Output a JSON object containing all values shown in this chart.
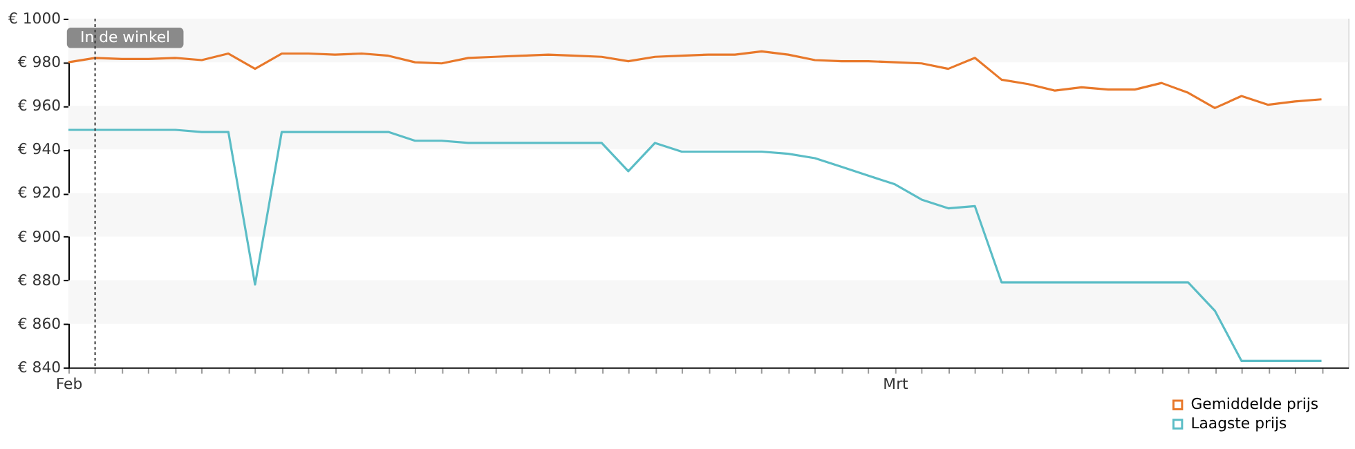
{
  "chart_data": {
    "type": "line",
    "categories": [
      "Feb",
      null,
      null,
      null,
      null,
      null,
      null,
      null,
      null,
      null,
      null,
      null,
      null,
      null,
      null,
      null,
      null,
      null,
      null,
      null,
      null,
      null,
      null,
      null,
      null,
      null,
      null,
      null,
      null,
      null,
      null,
      "Mrt",
      null,
      null,
      null,
      null,
      null,
      null,
      null,
      null,
      null,
      null,
      null,
      null,
      null,
      null,
      null,
      null
    ],
    "series": [
      {
        "name": "Gemiddelde prijs",
        "color": "#e8782a",
        "values": [
          980,
          982,
          981.5,
          981.5,
          982,
          981,
          984,
          977,
          984,
          984,
          983.5,
          984,
          983,
          980,
          979.5,
          982,
          982.5,
          983,
          983.5,
          983,
          982.5,
          980.5,
          982.5,
          983,
          983.5,
          983.5,
          985,
          983.5,
          981,
          980.5,
          980.5,
          980,
          979.5,
          977,
          982,
          972,
          970,
          967,
          968.5,
          967.5,
          967.5,
          970.5,
          966,
          959,
          964.5,
          960.5,
          962,
          963
        ]
      },
      {
        "name": "Laagste prijs",
        "color": "#5bbdc6",
        "values": [
          949,
          949,
          949,
          949,
          949,
          948,
          948,
          878,
          948,
          948,
          948,
          948,
          948,
          944,
          944,
          943,
          943,
          943,
          943,
          943,
          943,
          930,
          943,
          939,
          939,
          939,
          939,
          938,
          936,
          932,
          928,
          924,
          917,
          913,
          914,
          879,
          879,
          879,
          879,
          879,
          879,
          879,
          879,
          866,
          843,
          843,
          843,
          843
        ]
      }
    ],
    "ylim": [
      840,
      1000
    ],
    "yticks": [
      {
        "value": 840,
        "label": "€ 840"
      },
      {
        "value": 860,
        "label": "€ 860"
      },
      {
        "value": 880,
        "label": "€ 880"
      },
      {
        "value": 900,
        "label": "€ 900"
      },
      {
        "value": 920,
        "label": "€ 920"
      },
      {
        "value": 940,
        "label": "€ 940"
      },
      {
        "value": 960,
        "label": "€ 960"
      },
      {
        "value": 980,
        "label": "€ 980"
      },
      {
        "value": 1000,
        "label": "€ 1000"
      }
    ],
    "bands": [
      {
        "axis": "y",
        "from": 980,
        "to": 1000,
        "color": "#f7f7f7"
      },
      {
        "axis": "y",
        "from": 940,
        "to": 960,
        "color": "#f7f7f7"
      },
      {
        "axis": "y",
        "from": 900,
        "to": 920,
        "color": "#f7f7f7"
      },
      {
        "axis": "y",
        "from": 860,
        "to": 880,
        "color": "#f7f7f7"
      }
    ],
    "annotations": [
      "In de winkel"
    ],
    "legend": "bottom right",
    "marker": "none",
    "line_style": "solid"
  }
}
